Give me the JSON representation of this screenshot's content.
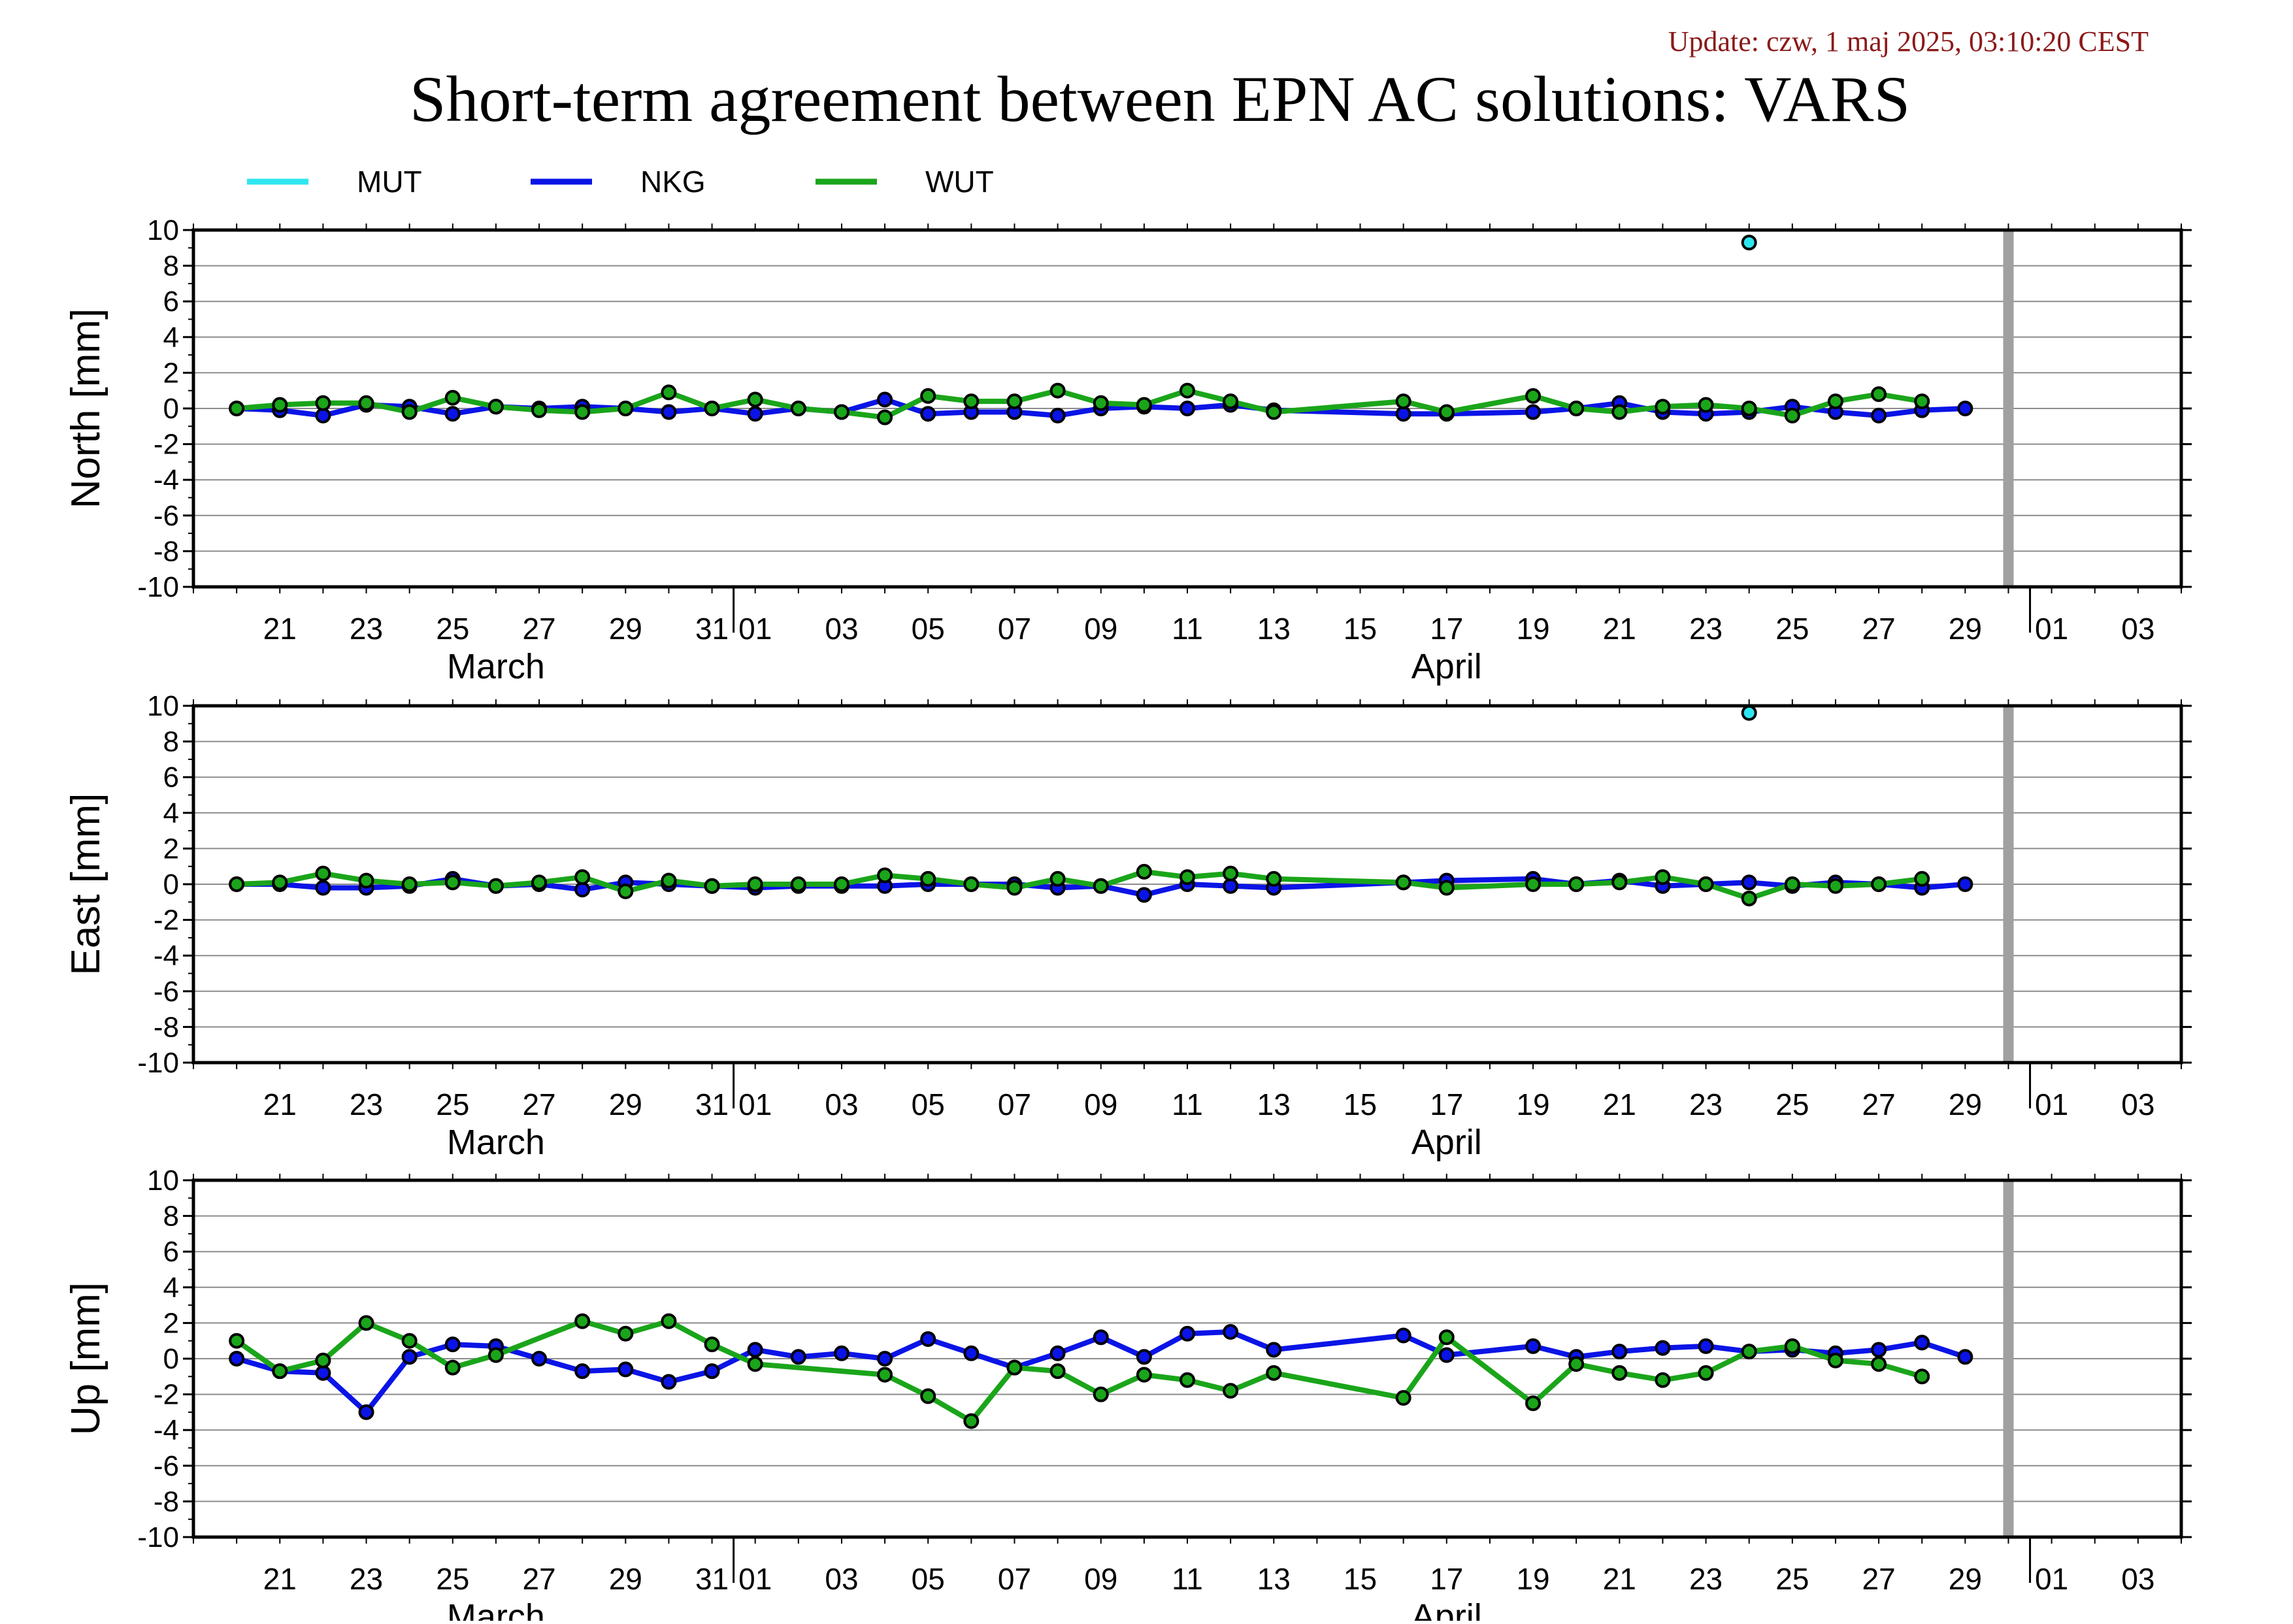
{
  "update_text": "Update: czw, 1 maj 2025, 03:10:20 CEST",
  "title": "Short-term agreement between EPN AC solutions: VARS",
  "colors": {
    "MUT": "#2ee6f0",
    "NKG": "#0a14e6",
    "WUT": "#1aa51a",
    "update": "#8b1a1a",
    "future_bar": "#a0a0a0"
  },
  "chart_data": {
    "type": "line",
    "x_unit": "date",
    "legend": [
      "MUT",
      "NKG",
      "WUT"
    ],
    "legend_placement": "top-left",
    "x_tick_labels": [
      "21",
      "23",
      "25",
      "27",
      "29",
      "31",
      "01",
      "03",
      "05",
      "07",
      "09",
      "11",
      "13",
      "15",
      "17",
      "19",
      "21",
      "23",
      "25",
      "27",
      "29",
      "01",
      "03"
    ],
    "month_labels": [
      "March",
      "April"
    ],
    "xlim": [
      "2025-03-19",
      "2025-05-04"
    ],
    "future_marker_date": "2025-04-30",
    "grid": true,
    "panels": [
      {
        "ylabel": "North [mm]",
        "ylim": [
          -10,
          10
        ],
        "y_ticks": [
          "10",
          "8",
          "6",
          "4",
          "2",
          "0",
          "-2",
          "-4",
          "-6",
          "-8",
          "-10"
        ],
        "series": [
          {
            "name": "MUT",
            "x": [
              "2025-04-24"
            ],
            "values": [
              9.3
            ]
          },
          {
            "name": "NKG",
            "x": [
              "2025-03-20",
              "2025-03-21",
              "2025-03-22",
              "2025-03-23",
              "2025-03-24",
              "2025-03-25",
              "2025-03-26",
              "2025-03-27",
              "2025-03-28",
              "2025-03-29",
              "2025-03-30",
              "2025-03-31",
              "2025-04-01",
              "2025-04-02",
              "2025-04-03",
              "2025-04-04",
              "2025-04-05",
              "2025-04-06",
              "2025-04-07",
              "2025-04-08",
              "2025-04-09",
              "2025-04-10",
              "2025-04-11",
              "2025-04-12",
              "2025-04-13",
              "2025-04-16",
              "2025-04-17",
              "2025-04-19",
              "2025-04-20",
              "2025-04-21",
              "2025-04-22",
              "2025-04-23",
              "2025-04-24",
              "2025-04-25",
              "2025-04-26",
              "2025-04-27",
              "2025-04-28",
              "2025-04-29"
            ],
            "values": [
              0.0,
              -0.1,
              -0.4,
              0.2,
              0.1,
              -0.3,
              0.1,
              0.0,
              0.1,
              0.0,
              -0.2,
              0.0,
              -0.3,
              0.0,
              -0.2,
              0.5,
              -0.3,
              -0.2,
              -0.2,
              -0.4,
              0.0,
              0.1,
              0.0,
              0.2,
              -0.1,
              -0.3,
              -0.3,
              -0.2,
              0.0,
              0.3,
              -0.2,
              -0.3,
              -0.2,
              0.1,
              -0.2,
              -0.4,
              -0.1,
              0.0
            ]
          },
          {
            "name": "WUT",
            "x": [
              "2025-03-20",
              "2025-03-21",
              "2025-03-22",
              "2025-03-23",
              "2025-03-24",
              "2025-03-25",
              "2025-03-26",
              "2025-03-27",
              "2025-03-28",
              "2025-03-29",
              "2025-03-30",
              "2025-03-31",
              "2025-04-01",
              "2025-04-02",
              "2025-04-03",
              "2025-04-04",
              "2025-04-05",
              "2025-04-06",
              "2025-04-07",
              "2025-04-08",
              "2025-04-09",
              "2025-04-10",
              "2025-04-11",
              "2025-04-12",
              "2025-04-13",
              "2025-04-16",
              "2025-04-17",
              "2025-04-19",
              "2025-04-20",
              "2025-04-21",
              "2025-04-22",
              "2025-04-23",
              "2025-04-24",
              "2025-04-25",
              "2025-04-26",
              "2025-04-27",
              "2025-04-28"
            ],
            "values": [
              0.0,
              0.2,
              0.3,
              0.3,
              -0.2,
              0.6,
              0.1,
              -0.1,
              -0.2,
              0.0,
              0.9,
              0.0,
              0.5,
              0.0,
              -0.2,
              -0.5,
              0.7,
              0.4,
              0.4,
              1.0,
              0.3,
              0.2,
              1.0,
              0.4,
              -0.2,
              0.4,
              -0.2,
              0.7,
              0.0,
              -0.2,
              0.1,
              0.2,
              0.0,
              -0.4,
              0.4,
              0.8,
              0.4
            ]
          }
        ]
      },
      {
        "ylabel": "East [mm]",
        "ylim": [
          -10,
          10
        ],
        "y_ticks": [
          "10",
          "8",
          "6",
          "4",
          "2",
          "0",
          "-2",
          "-4",
          "-6",
          "-8",
          "-10"
        ],
        "series": [
          {
            "name": "MUT",
            "x": [
              "2025-04-24"
            ],
            "values": [
              9.6
            ]
          },
          {
            "name": "NKG",
            "x": [
              "2025-03-20",
              "2025-03-21",
              "2025-03-22",
              "2025-03-23",
              "2025-03-24",
              "2025-03-25",
              "2025-03-26",
              "2025-03-27",
              "2025-03-28",
              "2025-03-29",
              "2025-03-30",
              "2025-03-31",
              "2025-04-01",
              "2025-04-02",
              "2025-04-03",
              "2025-04-04",
              "2025-04-05",
              "2025-04-06",
              "2025-04-07",
              "2025-04-08",
              "2025-04-09",
              "2025-04-10",
              "2025-04-11",
              "2025-04-12",
              "2025-04-13",
              "2025-04-16",
              "2025-04-17",
              "2025-04-19",
              "2025-04-20",
              "2025-04-21",
              "2025-04-22",
              "2025-04-23",
              "2025-04-24",
              "2025-04-25",
              "2025-04-26",
              "2025-04-27",
              "2025-04-28",
              "2025-04-29"
            ],
            "values": [
              0.0,
              0.0,
              -0.2,
              -0.2,
              -0.1,
              0.3,
              -0.1,
              0.0,
              -0.3,
              0.1,
              0.0,
              -0.1,
              -0.2,
              -0.1,
              -0.1,
              -0.1,
              0.0,
              0.0,
              0.0,
              -0.2,
              -0.1,
              -0.6,
              0.0,
              -0.1,
              -0.2,
              0.1,
              0.2,
              0.3,
              0.0,
              0.2,
              -0.1,
              0.0,
              0.1,
              -0.1,
              0.1,
              0.0,
              -0.2,
              0.0
            ]
          },
          {
            "name": "WUT",
            "x": [
              "2025-03-20",
              "2025-03-21",
              "2025-03-22",
              "2025-03-23",
              "2025-03-24",
              "2025-03-25",
              "2025-03-26",
              "2025-03-27",
              "2025-03-28",
              "2025-03-29",
              "2025-03-30",
              "2025-03-31",
              "2025-04-01",
              "2025-04-02",
              "2025-04-03",
              "2025-04-04",
              "2025-04-05",
              "2025-04-06",
              "2025-04-07",
              "2025-04-08",
              "2025-04-09",
              "2025-04-10",
              "2025-04-11",
              "2025-04-12",
              "2025-04-13",
              "2025-04-16",
              "2025-04-17",
              "2025-04-19",
              "2025-04-20",
              "2025-04-21",
              "2025-04-22",
              "2025-04-23",
              "2025-04-24",
              "2025-04-25",
              "2025-04-26",
              "2025-04-27",
              "2025-04-28"
            ],
            "values": [
              0.0,
              0.1,
              0.6,
              0.2,
              0.0,
              0.1,
              -0.1,
              0.1,
              0.4,
              -0.4,
              0.2,
              -0.1,
              0.0,
              0.0,
              0.0,
              0.5,
              0.3,
              0.0,
              -0.2,
              0.3,
              -0.1,
              0.7,
              0.4,
              0.6,
              0.3,
              0.1,
              -0.2,
              0.0,
              0.0,
              0.1,
              0.4,
              0.0,
              -0.8,
              0.0,
              -0.1,
              0.0,
              0.3
            ]
          }
        ]
      },
      {
        "ylabel": "Up [mm]",
        "ylim": [
          -10,
          10
        ],
        "y_ticks": [
          "10",
          "8",
          "6",
          "4",
          "2",
          "0",
          "-2",
          "-4",
          "-6",
          "-8",
          "-10"
        ],
        "series": [
          {
            "name": "NKG",
            "x": [
              "2025-03-20",
              "2025-03-21",
              "2025-03-22",
              "2025-03-23",
              "2025-03-24",
              "2025-03-25",
              "2025-03-26",
              "2025-03-27",
              "2025-03-28",
              "2025-03-29",
              "2025-03-30",
              "2025-03-31",
              "2025-04-01",
              "2025-04-02",
              "2025-04-03",
              "2025-04-04",
              "2025-04-05",
              "2025-04-06",
              "2025-04-07",
              "2025-04-08",
              "2025-04-09",
              "2025-04-10",
              "2025-04-11",
              "2025-04-12",
              "2025-04-13",
              "2025-04-16",
              "2025-04-17",
              "2025-04-19",
              "2025-04-20",
              "2025-04-21",
              "2025-04-22",
              "2025-04-23",
              "2025-04-24",
              "2025-04-25",
              "2025-04-26",
              "2025-04-27",
              "2025-04-28",
              "2025-04-29"
            ],
            "values": [
              0.0,
              -0.7,
              -0.8,
              -3.0,
              0.1,
              0.8,
              0.7,
              0.0,
              -0.7,
              -0.6,
              -1.3,
              -0.7,
              0.5,
              0.1,
              0.3,
              0.0,
              1.1,
              0.3,
              -0.5,
              0.3,
              1.2,
              0.1,
              1.4,
              1.5,
              0.5,
              1.3,
              0.2,
              0.7,
              0.1,
              0.4,
              0.6,
              0.7,
              0.4,
              0.5,
              0.3,
              0.5,
              0.9,
              0.1
            ]
          },
          {
            "name": "WUT",
            "x": [
              "2025-03-20",
              "2025-03-21",
              "2025-03-22",
              "2025-03-23",
              "2025-03-24",
              "2025-03-25",
              "2025-03-26",
              "2025-03-28",
              "2025-03-29",
              "2025-03-30",
              "2025-03-31",
              "2025-04-01",
              "2025-04-04",
              "2025-04-05",
              "2025-04-06",
              "2025-04-07",
              "2025-04-08",
              "2025-04-09",
              "2025-04-10",
              "2025-04-11",
              "2025-04-12",
              "2025-04-13",
              "2025-04-16",
              "2025-04-17",
              "2025-04-19",
              "2025-04-20",
              "2025-04-21",
              "2025-04-22",
              "2025-04-23",
              "2025-04-24",
              "2025-04-25",
              "2025-04-26",
              "2025-04-27",
              "2025-04-28"
            ],
            "values": [
              1.0,
              -0.7,
              -0.1,
              2.0,
              1.0,
              -0.5,
              0.2,
              2.1,
              1.4,
              2.1,
              0.8,
              -0.3,
              -0.9,
              -2.1,
              -3.5,
              -0.5,
              -0.7,
              -2.0,
              -0.9,
              -1.2,
              -1.8,
              -0.8,
              -2.2,
              1.2,
              -2.5,
              -0.3,
              -0.8,
              -1.2,
              -0.8,
              0.4,
              0.7,
              -0.1,
              -0.3,
              -1.0
            ]
          }
        ]
      }
    ]
  }
}
